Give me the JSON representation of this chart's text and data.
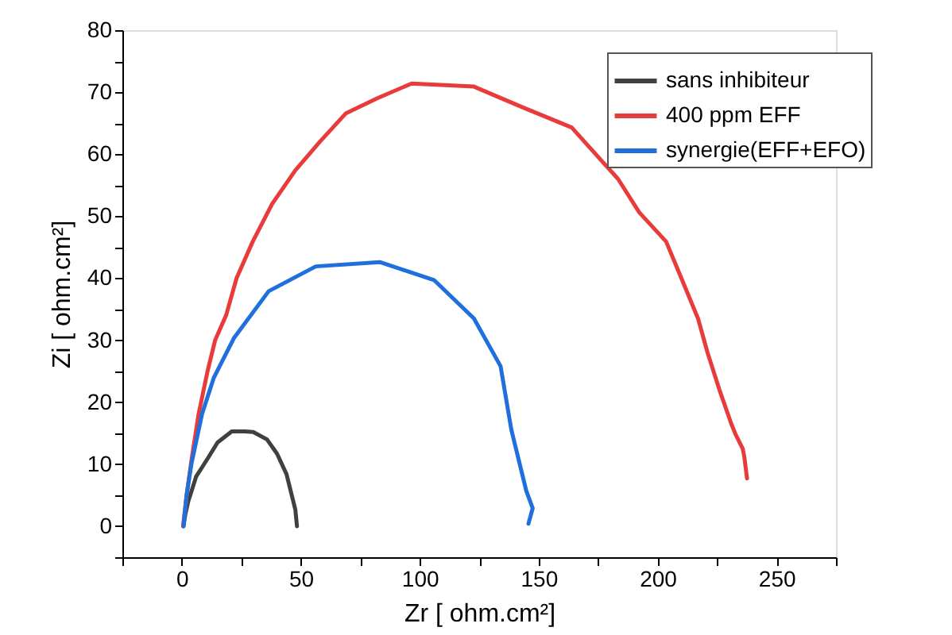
{
  "chart_data": {
    "type": "line",
    "xlabel": "Zr [ ohm.cm²]",
    "ylabel": "Zi [ ohm.cm²]",
    "xlim": [
      -25,
      275
    ],
    "ylim": [
      -5,
      80
    ],
    "xticks": [
      {
        "value": -25,
        "label": null
      },
      0,
      {
        "value": 25,
        "label": null
      },
      50,
      {
        "value": 75,
        "label": null
      },
      100,
      {
        "value": 125,
        "label": null
      },
      150,
      {
        "value": 175,
        "label": null
      },
      200,
      {
        "value": 225,
        "label": null
      },
      250,
      {
        "value": 275,
        "label": null
      }
    ],
    "yticks": [
      {
        "value": -5,
        "label": null
      },
      0,
      {
        "value": 5,
        "label": null
      },
      10,
      {
        "value": 15,
        "label": null
      },
      20,
      {
        "value": 25,
        "label": null
      },
      30,
      {
        "value": 35,
        "label": null
      },
      40,
      {
        "value": 45,
        "label": null
      },
      50,
      {
        "value": 55,
        "label": null
      },
      60,
      {
        "value": 65,
        "label": null
      },
      70,
      {
        "value": 75,
        "label": null
      },
      80
    ],
    "grid": false,
    "legend": "top right",
    "marker": "none",
    "line_style": "solid",
    "series": [
      {
        "name": "sans inhibiteur",
        "color": "#404040",
        "x": [
          0.7,
          1.5,
          2.7,
          6,
          11,
          15,
          21,
          26.4,
          30,
          35.8,
          40,
          44,
          47.7,
          48.4
        ],
        "values": [
          0,
          2,
          4,
          8,
          11,
          13.5,
          15.3,
          15.3,
          15.2,
          14,
          11.7,
          8.4,
          2.7,
          0
        ]
      },
      {
        "name": "400 ppm EFF",
        "color": "#e83c3c",
        "x": [
          0.5,
          2,
          4,
          7,
          10.8,
          14,
          18.6,
          23,
          29.8,
          38,
          47.7,
          58,
          69,
          82,
          96.6,
          122.8,
          143,
          163.9,
          183.4,
          192.3,
          203.6,
          210,
          217,
          221,
          226,
          231,
          232.7,
          235.8,
          236.5,
          237.6
        ],
        "values": [
          0,
          5,
          10.5,
          18,
          25,
          30,
          34,
          40,
          45.9,
          52,
          57.4,
          62,
          66.6,
          69,
          71.4,
          70.9,
          67.6,
          64.3,
          56,
          50.6,
          45.9,
          40,
          33.5,
          28,
          22,
          16.5,
          14.9,
          12.5,
          11.1,
          7.7
        ]
      },
      {
        "name": "synergie(EFF+EFO)",
        "color": "#1f6fdc",
        "x": [
          0.7,
          2,
          4,
          8.5,
          13.4,
          22,
          36.5,
          56.3,
          83.2,
          106,
          122.8,
          134,
          138.5,
          144.8,
          147.5,
          145.7
        ],
        "values": [
          0,
          5,
          10,
          18.1,
          23.9,
          30.4,
          37.9,
          41.9,
          42.6,
          39.7,
          33.5,
          25.8,
          15.6,
          5.7,
          2.9,
          0.4
        ]
      }
    ]
  }
}
